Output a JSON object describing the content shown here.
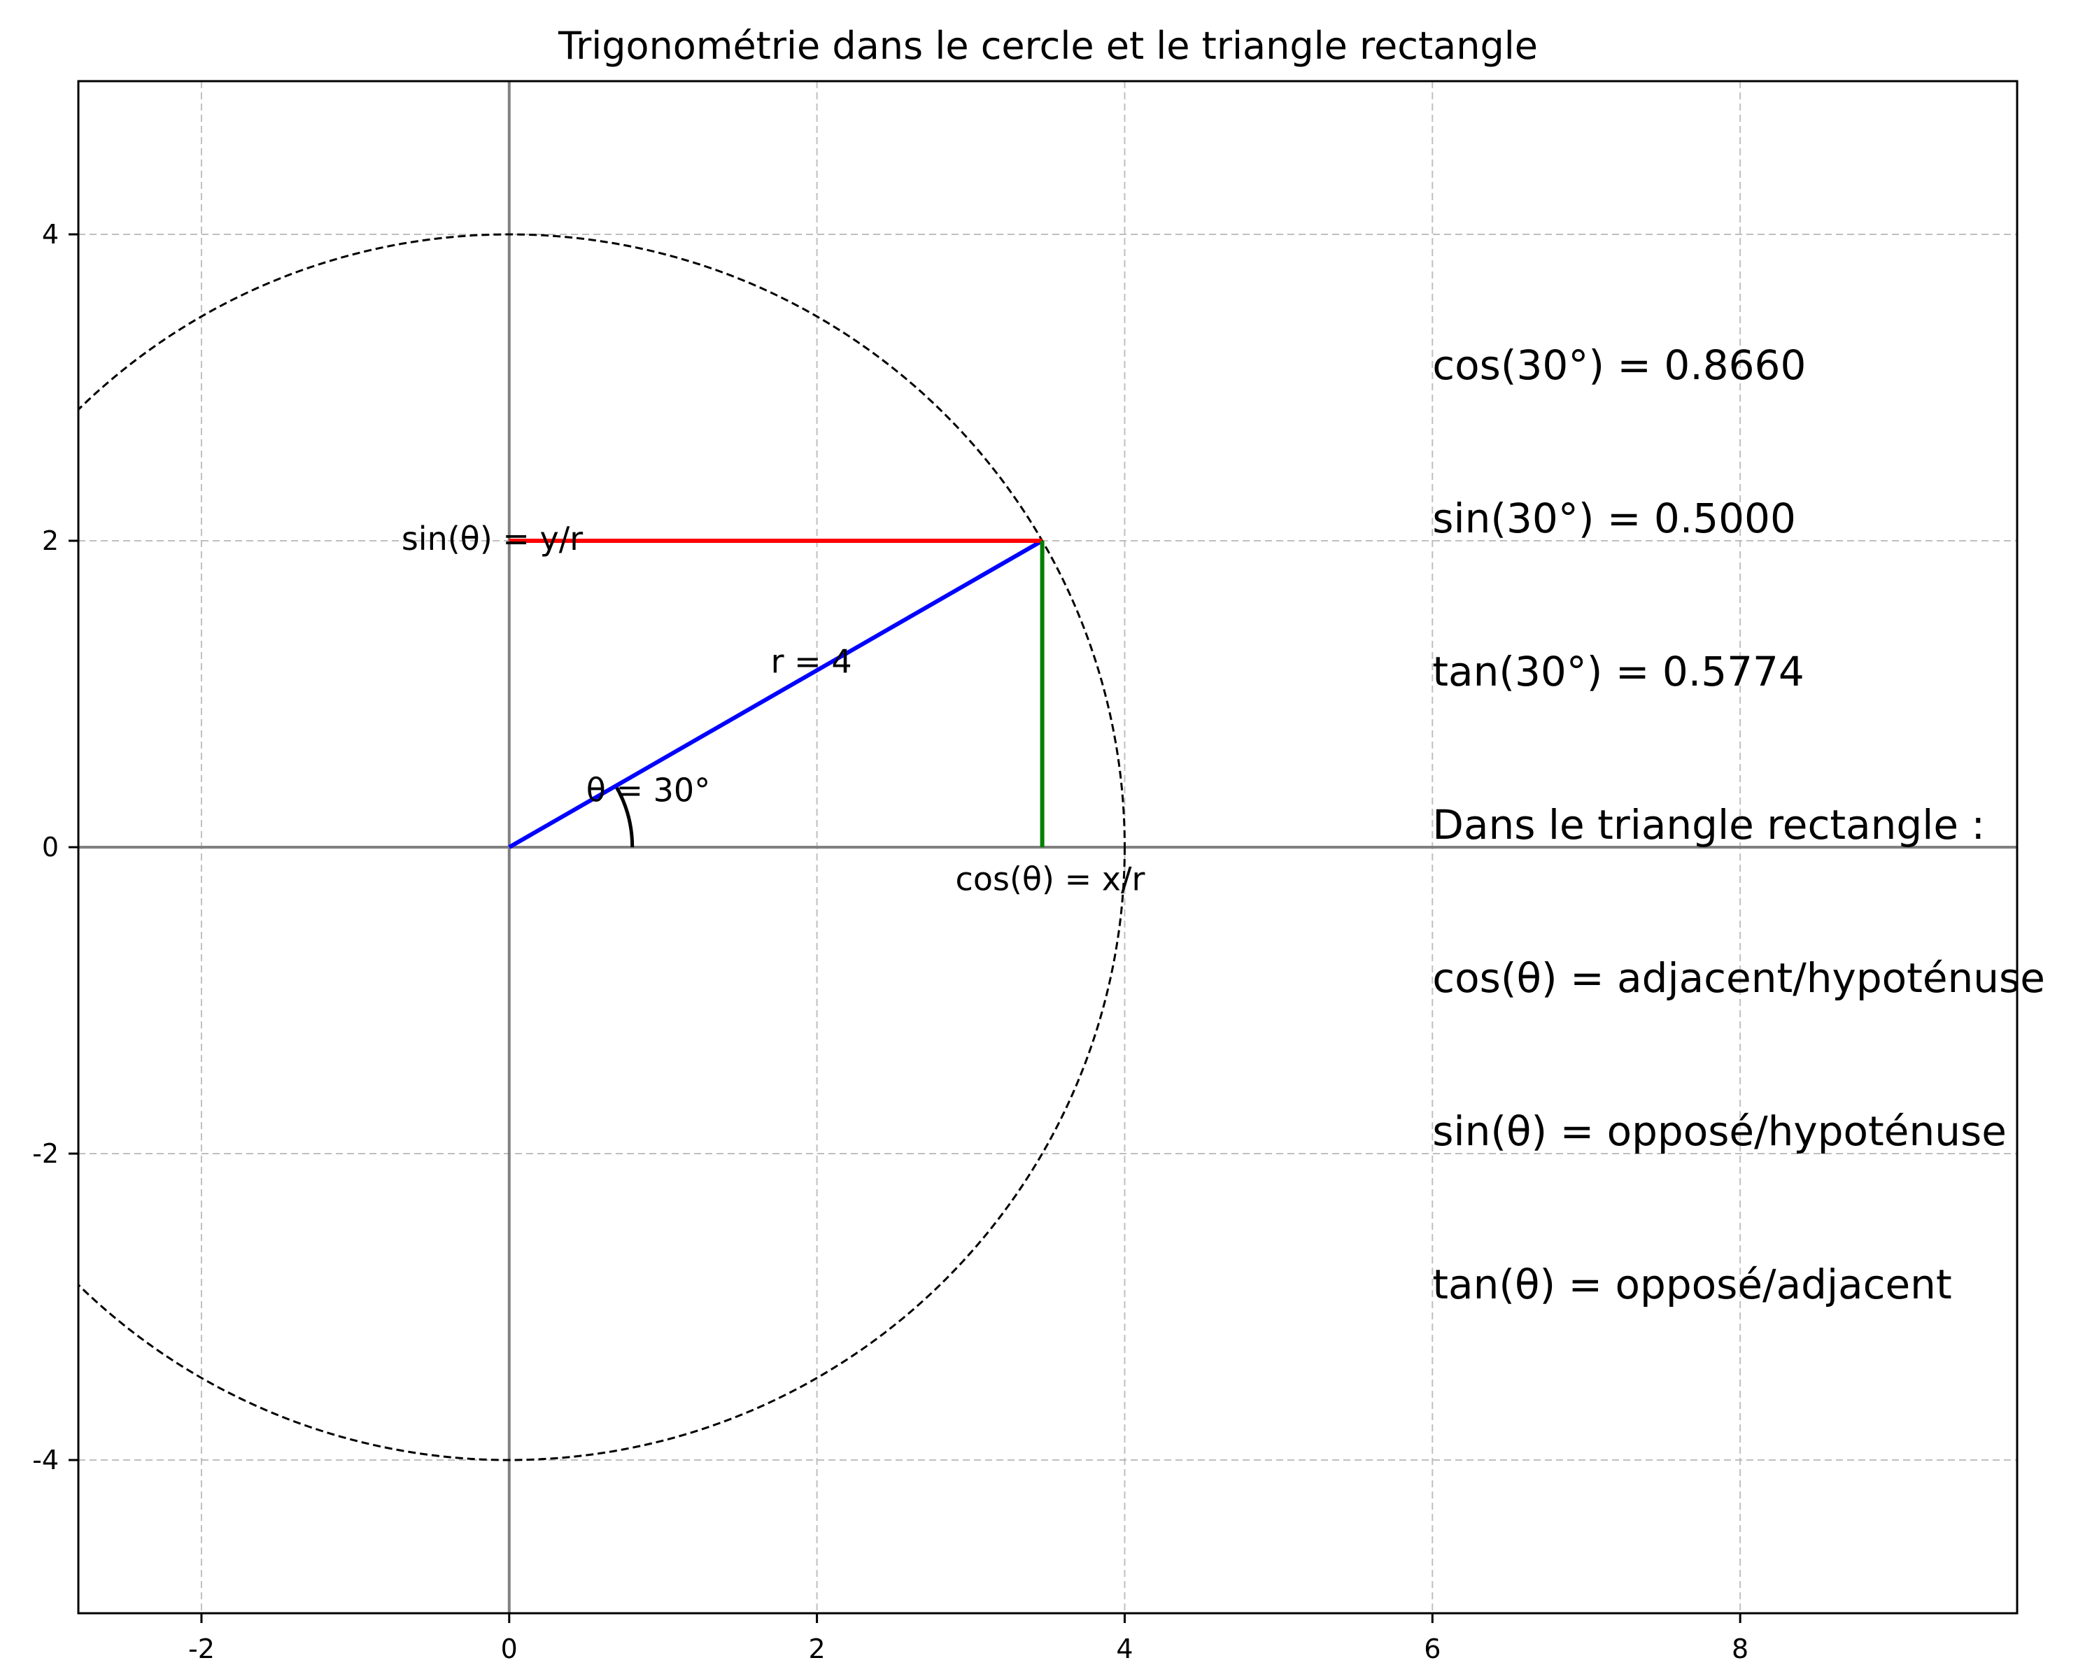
{
  "chart_data": {
    "type": "line",
    "title": "Trigonométrie dans le cercle et le triangle rectangle",
    "xlabel": "",
    "ylabel": "",
    "xlim": [
      -2.8,
      9.8
    ],
    "ylim": [
      -5,
      5
    ],
    "x_ticks": [
      -2,
      0,
      2,
      4,
      6,
      8
    ],
    "y_ticks": [
      -4,
      -2,
      0,
      2,
      4
    ],
    "x_tick_labels": [
      "-2",
      "0",
      "2",
      "4",
      "6",
      "8"
    ],
    "y_tick_labels": [
      "-4",
      "-2",
      "0",
      "2",
      "4"
    ],
    "grid": true,
    "angle_deg": 30,
    "radius": 4,
    "circle": {
      "center": [
        0,
        0
      ],
      "radius": 4,
      "style": "dashed",
      "color": "#000000"
    },
    "series": [
      {
        "points": [
          [
            0,
            0
          ],
          [
            3.4641,
            2
          ]
        ],
        "color": "#0000ff"
      },
      {
        "points": [
          [
            0,
            2
          ],
          [
            3.4641,
            2
          ]
        ],
        "color": "#ff0000"
      },
      {
        "points": [
          [
            3.4641,
            0
          ],
          [
            3.4641,
            2
          ]
        ],
        "color": "#008000"
      }
    ],
    "annotations": [
      {
        "text": "r = 4",
        "x": 1.7,
        "y": 1.14
      },
      {
        "text": "θ = 30°",
        "x": 0.5,
        "y": 0.3
      },
      {
        "text": "sin(θ) = y/r",
        "x": -0.7,
        "y": 1.94
      },
      {
        "text": "cos(θ) = x/r",
        "x": 2.9,
        "y": -0.28
      }
    ],
    "info_lines": [
      {
        "text": "cos(30°) = 0.8660",
        "x": 6,
        "y": 3.0
      },
      {
        "text": "sin(30°) = 0.5000",
        "x": 6,
        "y": 2.0
      },
      {
        "text": "tan(30°) = 0.5774",
        "x": 6,
        "y": 1.0
      },
      {
        "text": "Dans le triangle rectangle :",
        "x": 6,
        "y": 0.0
      },
      {
        "text": "cos(θ) = adjacent/hypoténuse",
        "x": 6,
        "y": -1.0
      },
      {
        "text": "sin(θ) = opposé/hypoténuse",
        "x": 6,
        "y": -2.0
      },
      {
        "text": "tan(θ) = opposé/adjacent",
        "x": 6,
        "y": -3.0
      }
    ]
  }
}
